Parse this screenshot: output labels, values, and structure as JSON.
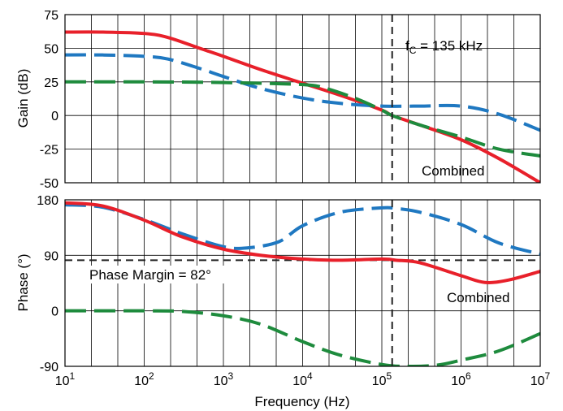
{
  "chart_data": [
    {
      "type": "line",
      "xscale": "log",
      "xlim": [
        10,
        10000000
      ],
      "ylim": [
        -50,
        75
      ],
      "yticks": [
        "75",
        "50",
        "25",
        "0",
        "-25",
        "-50"
      ],
      "ylabel": "Gain (dB)",
      "grid": true,
      "series": [
        {
          "color": "#e8202a",
          "style": "solid",
          "x": [
            10,
            30,
            100,
            200,
            500,
            1000,
            3000,
            10000,
            30000,
            100000,
            135000,
            300000,
            1000000,
            3000000,
            10000000
          ],
          "y": [
            62,
            62,
            61,
            58,
            50,
            44,
            34,
            24,
            15,
            4,
            0,
            -7,
            -18,
            -32,
            -50
          ]
        },
        {
          "color": "#1f78c1",
          "style": "dashed",
          "x": [
            10,
            30,
            100,
            200,
            500,
            1000,
            3000,
            10000,
            30000,
            100000,
            300000,
            1000000,
            3000000,
            10000000
          ],
          "y": [
            45,
            45,
            44,
            42,
            35,
            29,
            20,
            13,
            9,
            7,
            7,
            7,
            1,
            -11
          ]
        },
        {
          "name": "Combined",
          "color": "#1e8b3d",
          "style": "dashed",
          "x": [
            10,
            100,
            1000,
            10000,
            20000,
            50000,
            100000,
            135000,
            300000,
            1000000,
            3000000,
            10000000
          ],
          "y": [
            25,
            25,
            24.5,
            23,
            20,
            12,
            4,
            0,
            -7,
            -16,
            -25,
            -30
          ]
        }
      ],
      "annotations": {
        "crossover": "f",
        "crossover_sub": "C",
        "crossover_rest": " = 135 kHz",
        "crossover_freq": 135000,
        "combined_label": "Combined"
      }
    },
    {
      "type": "line",
      "xscale": "log",
      "xlim": [
        10,
        10000000
      ],
      "ylim": [
        -90,
        180
      ],
      "yticks": [
        "180",
        "90",
        "0",
        "-90"
      ],
      "xticks_base": "10",
      "xticks_exp": [
        "1",
        "2",
        "3",
        "4",
        "5",
        "6",
        "7"
      ],
      "xlabel": "Frequency (Hz)",
      "ylabel": "Phase (°)",
      "grid": true,
      "series": [
        {
          "color": "#1f78c1",
          "style": "dashed",
          "x": [
            10,
            30,
            100,
            300,
            1000,
            2000,
            5000,
            10000,
            30000,
            100000,
            150000,
            300000,
            1000000,
            3000000,
            10000000
          ],
          "y": [
            172,
            168,
            148,
            125,
            104,
            102,
            112,
            138,
            160,
            167,
            166,
            160,
            140,
            110,
            92
          ]
        },
        {
          "name": "Combined",
          "color": "#e8202a",
          "style": "solid",
          "x": [
            10,
            30,
            100,
            300,
            1000,
            3000,
            10000,
            30000,
            100000,
            150000,
            300000,
            1000000,
            2000000,
            4000000,
            10000000
          ],
          "y": [
            175,
            170,
            147,
            120,
            100,
            90,
            84,
            82,
            84,
            82,
            78,
            57,
            46,
            50,
            64
          ]
        },
        {
          "color": "#1e8b3d",
          "style": "dashed",
          "x": [
            10,
            100,
            300,
            1000,
            3000,
            10000,
            30000,
            100000,
            200000,
            500000,
            1000000,
            3000000,
            10000000
          ],
          "y": [
            0,
            0,
            -1,
            -8,
            -22,
            -50,
            -72,
            -87,
            -90,
            -88,
            -80,
            -65,
            -37
          ]
        }
      ],
      "annotations": {
        "phase_margin": "Phase Margin = 82°",
        "phase_margin_level": 82,
        "combined_label": "Combined"
      }
    }
  ]
}
